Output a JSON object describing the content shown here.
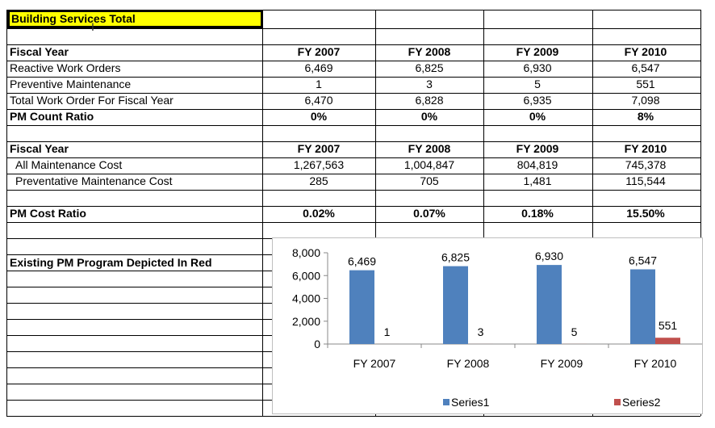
{
  "sheet": {
    "title": "Building Services Total",
    "table1": {
      "header": "Fiscal Year",
      "years": [
        "FY 2007",
        "FY 2008",
        "FY 2009",
        "FY 2010"
      ],
      "rows": [
        {
          "label": "Reactive Work Orders",
          "values": [
            "6,469",
            "6,825",
            "6,930",
            "6,547"
          ],
          "bold": false
        },
        {
          "label": "Preventive Maintenance",
          "values": [
            "1",
            "3",
            "5",
            "551"
          ],
          "bold": false
        },
        {
          "label": "Total Work Order For Fiscal Year",
          "values": [
            "6,470",
            "6,828",
            "6,935",
            "7,098"
          ],
          "bold": false
        },
        {
          "label": "PM Count Ratio",
          "values": [
            "0%",
            "0%",
            "0%",
            "8%"
          ],
          "bold": true
        }
      ]
    },
    "table2": {
      "header": "Fiscal Year",
      "years": [
        "FY 2007",
        "FY 2008",
        "FY 2009",
        "FY 2010"
      ],
      "rows": [
        {
          "label": "All Maintenance Cost",
          "values": [
            "1,267,563",
            "1,004,847",
            "804,819",
            "745,378"
          ]
        },
        {
          "label": "Preventative Maintenance Cost",
          "values": [
            "285",
            "705",
            "1,481",
            "115,544"
          ]
        }
      ]
    },
    "ratio": {
      "label": "PM Cost Ratio",
      "values": [
        "0.02%",
        "0.07%",
        "0.18%",
        "15.50%"
      ]
    },
    "chart_caption": "Existing PM Program Depicted In Red"
  },
  "chart_data": {
    "type": "bar",
    "categories": [
      "FY 2007",
      "FY 2008",
      "FY 2009",
      "FY 2010"
    ],
    "series": [
      {
        "name": "Series1",
        "values": [
          6469,
          6825,
          6930,
          6547
        ],
        "labels": [
          "6,469",
          "6,825",
          "6,930",
          "6,547"
        ],
        "color": "#4f81bd"
      },
      {
        "name": "Series2",
        "values": [
          1,
          3,
          5,
          551
        ],
        "labels": [
          "1",
          "3",
          "5",
          "551"
        ],
        "color": "#c0504d"
      }
    ],
    "yticks": [
      "0",
      "2,000",
      "4,000",
      "6,000",
      "8,000"
    ],
    "ylim": [
      0,
      8000
    ],
    "legend": "bottom"
  }
}
